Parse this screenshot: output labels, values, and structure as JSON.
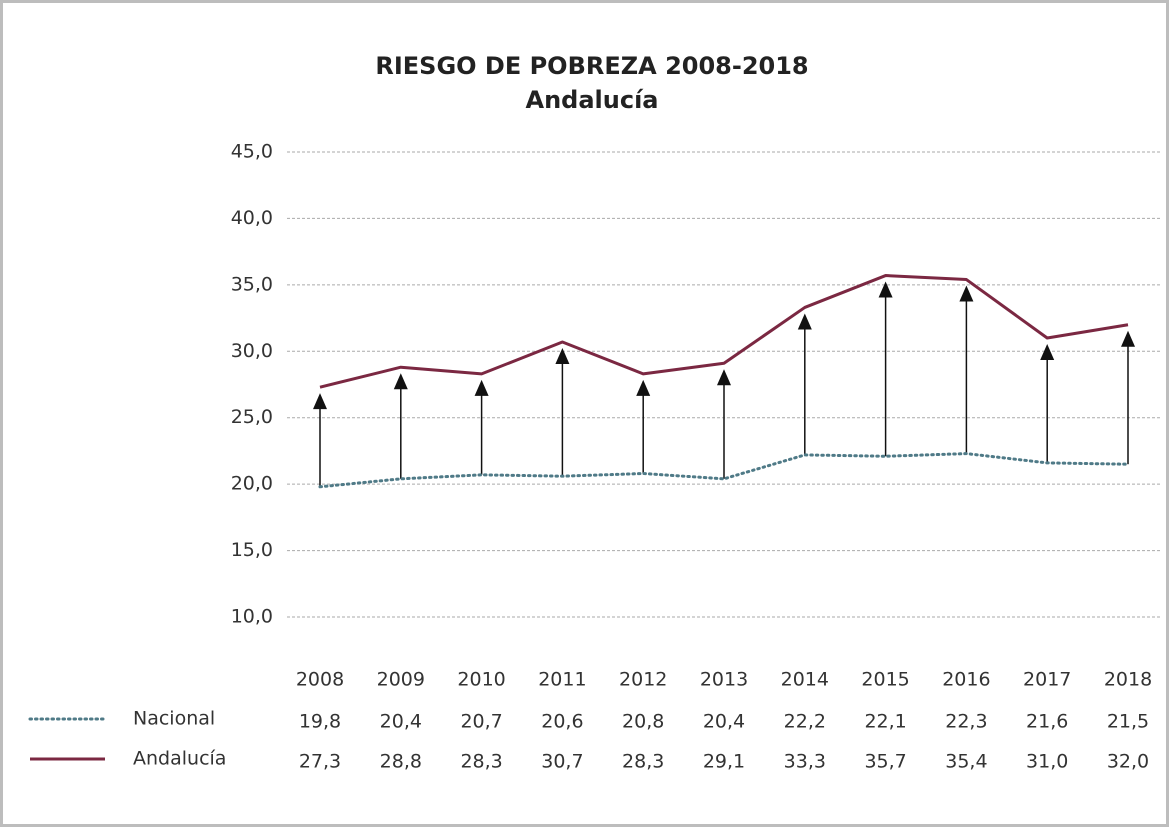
{
  "chart_data": {
    "type": "line",
    "title": "RIESGO DE POBREZA 2008-2018",
    "subtitle": "Andalucía",
    "categories": [
      "2008",
      "2009",
      "2010",
      "2011",
      "2012",
      "2013",
      "2014",
      "2015",
      "2016",
      "2017",
      "2018"
    ],
    "series": [
      {
        "name": "Nacional",
        "color": "#4f7a87",
        "dash": "dotted",
        "values": [
          19.8,
          20.4,
          20.7,
          20.6,
          20.8,
          20.4,
          22.2,
          22.1,
          22.3,
          21.6,
          21.5
        ],
        "value_labels": [
          "19,8",
          "20,4",
          "20,7",
          "20,6",
          "20,8",
          "20,4",
          "22,2",
          "22,1",
          "22,3",
          "21,6",
          "21,5"
        ]
      },
      {
        "name": "Andalucía",
        "color": "#7b2842",
        "dash": "solid",
        "values": [
          27.3,
          28.8,
          28.3,
          30.7,
          28.3,
          29.1,
          33.3,
          35.7,
          35.4,
          31.0,
          32.0
        ],
        "value_labels": [
          "27,3",
          "28,8",
          "28,3",
          "30,7",
          "28,3",
          "29,1",
          "33,3",
          "35,7",
          "35,4",
          "31,0",
          "32,0"
        ]
      }
    ],
    "ylim": [
      10,
      45
    ],
    "yticks": [
      {
        "value": 10,
        "label": "10,0"
      },
      {
        "value": 15,
        "label": "15,0"
      },
      {
        "value": 20,
        "label": "20,0"
      },
      {
        "value": 25,
        "label": "25,0"
      },
      {
        "value": 30,
        "label": "30,0"
      },
      {
        "value": 35,
        "label": "35,0"
      },
      {
        "value": 40,
        "label": "40,0"
      },
      {
        "value": 45,
        "label": "45,0"
      }
    ],
    "grid": true,
    "arrows": true,
    "data_table": true
  }
}
